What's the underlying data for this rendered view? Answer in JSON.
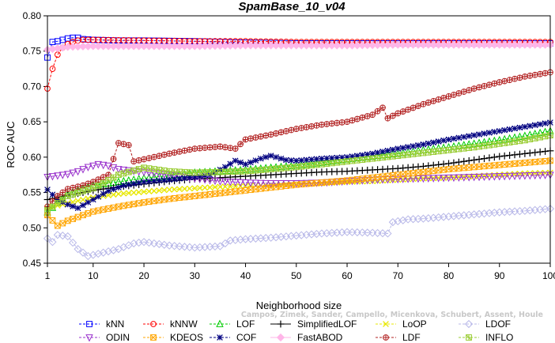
{
  "chart_data": {
    "type": "line",
    "title": "SpamBase_10_v04",
    "xlabel": "Neighborhood size",
    "ylabel": "ROC AUC",
    "xlim": [
      1,
      100
    ],
    "ylim": [
      0.45,
      0.8
    ],
    "x_ticks": [
      1,
      10,
      20,
      30,
      40,
      50,
      60,
      70,
      80,
      90,
      100
    ],
    "y_ticks": [
      "0.45",
      "0.50",
      "0.55",
      "0.60",
      "0.65",
      "0.70",
      "0.75",
      "0.80"
    ],
    "grid": false,
    "legend_position": "bottom",
    "series": [
      {
        "name": "kNN",
        "color": "#0000ff",
        "marker": "square",
        "dashed": true,
        "points": [
          [
            1,
            0.741
          ],
          [
            2,
            0.763
          ],
          [
            3,
            0.764
          ],
          [
            4,
            0.766
          ],
          [
            5,
            0.768
          ],
          [
            6,
            0.769
          ],
          [
            7,
            0.769
          ],
          [
            8,
            0.767
          ],
          [
            10,
            0.766
          ],
          [
            15,
            0.765
          ],
          [
            20,
            0.765
          ],
          [
            30,
            0.764
          ],
          [
            40,
            0.762
          ],
          [
            50,
            0.761
          ],
          [
            60,
            0.761
          ],
          [
            70,
            0.761
          ],
          [
            80,
            0.761
          ],
          [
            90,
            0.761
          ],
          [
            100,
            0.761
          ]
        ]
      },
      {
        "name": "kNNW",
        "color": "#ff0000",
        "marker": "circle",
        "dashed": true,
        "points": [
          [
            1,
            0.697
          ],
          [
            2,
            0.725
          ],
          [
            3,
            0.745
          ],
          [
            4,
            0.755
          ],
          [
            5,
            0.76
          ],
          [
            6,
            0.763
          ],
          [
            7,
            0.765
          ],
          [
            8,
            0.766
          ],
          [
            10,
            0.766
          ],
          [
            20,
            0.765
          ],
          [
            30,
            0.764
          ],
          [
            40,
            0.764
          ],
          [
            50,
            0.763
          ],
          [
            60,
            0.763
          ],
          [
            70,
            0.763
          ],
          [
            80,
            0.763
          ],
          [
            90,
            0.763
          ],
          [
            100,
            0.763
          ]
        ]
      },
      {
        "name": "LOF",
        "color": "#00cc00",
        "marker": "triangle-up",
        "dashed": true,
        "points": [
          [
            1,
            0.522
          ],
          [
            3,
            0.535
          ],
          [
            5,
            0.548
          ],
          [
            8,
            0.556
          ],
          [
            10,
            0.56
          ],
          [
            15,
            0.565
          ],
          [
            20,
            0.57
          ],
          [
            25,
            0.574
          ],
          [
            30,
            0.578
          ],
          [
            35,
            0.58
          ],
          [
            40,
            0.582
          ],
          [
            45,
            0.585
          ],
          [
            50,
            0.588
          ],
          [
            55,
            0.592
          ],
          [
            60,
            0.597
          ],
          [
            65,
            0.601
          ],
          [
            70,
            0.605
          ],
          [
            75,
            0.61
          ],
          [
            80,
            0.614
          ],
          [
            85,
            0.619
          ],
          [
            90,
            0.624
          ],
          [
            95,
            0.63
          ],
          [
            100,
            0.637
          ]
        ]
      },
      {
        "name": "SimplifiedLOF",
        "color": "#000000",
        "marker": "plus",
        "dashed": false,
        "points": [
          [
            1,
            0.54
          ],
          [
            3,
            0.543
          ],
          [
            5,
            0.546
          ],
          [
            8,
            0.55
          ],
          [
            10,
            0.553
          ],
          [
            15,
            0.558
          ],
          [
            20,
            0.562
          ],
          [
            25,
            0.566
          ],
          [
            30,
            0.569
          ],
          [
            35,
            0.571
          ],
          [
            40,
            0.573
          ],
          [
            45,
            0.575
          ],
          [
            50,
            0.577
          ],
          [
            55,
            0.579
          ],
          [
            60,
            0.58
          ],
          [
            65,
            0.582
          ],
          [
            70,
            0.584
          ],
          [
            75,
            0.587
          ],
          [
            80,
            0.591
          ],
          [
            85,
            0.596
          ],
          [
            90,
            0.601
          ],
          [
            95,
            0.605
          ],
          [
            100,
            0.609
          ]
        ]
      },
      {
        "name": "LoOP",
        "color": "#e8e800",
        "marker": "cross",
        "dashed": true,
        "points": [
          [
            1,
            0.528
          ],
          [
            5,
            0.535
          ],
          [
            10,
            0.543
          ],
          [
            15,
            0.548
          ],
          [
            20,
            0.551
          ],
          [
            25,
            0.554
          ],
          [
            30,
            0.556
          ],
          [
            35,
            0.558
          ],
          [
            40,
            0.559
          ],
          [
            45,
            0.561
          ],
          [
            50,
            0.562
          ],
          [
            55,
            0.563
          ],
          [
            60,
            0.565
          ],
          [
            65,
            0.566
          ],
          [
            70,
            0.568
          ],
          [
            75,
            0.57
          ],
          [
            80,
            0.571
          ],
          [
            85,
            0.573
          ],
          [
            90,
            0.575
          ],
          [
            95,
            0.577
          ],
          [
            100,
            0.578
          ]
        ]
      },
      {
        "name": "LDOF",
        "color": "#b8b8e8",
        "marker": "diamond",
        "dashed": true,
        "points": [
          [
            1,
            0.485
          ],
          [
            2,
            0.48
          ],
          [
            3,
            0.49
          ],
          [
            5,
            0.488
          ],
          [
            7,
            0.47
          ],
          [
            9,
            0.46
          ],
          [
            12,
            0.465
          ],
          [
            15,
            0.47
          ],
          [
            18,
            0.478
          ],
          [
            20,
            0.48
          ],
          [
            25,
            0.475
          ],
          [
            30,
            0.472
          ],
          [
            35,
            0.474
          ],
          [
            37,
            0.482
          ],
          [
            40,
            0.484
          ],
          [
            45,
            0.486
          ],
          [
            50,
            0.489
          ],
          [
            55,
            0.492
          ],
          [
            60,
            0.494
          ],
          [
            65,
            0.493
          ],
          [
            68,
            0.492
          ],
          [
            69,
            0.508
          ],
          [
            72,
            0.512
          ],
          [
            75,
            0.513
          ],
          [
            80,
            0.516
          ],
          [
            85,
            0.519
          ],
          [
            90,
            0.522
          ],
          [
            95,
            0.524
          ],
          [
            100,
            0.527
          ]
        ]
      },
      {
        "name": "ODIN",
        "color": "#9932cc",
        "marker": "triangle-down",
        "dashed": true,
        "points": [
          [
            1,
            0.572
          ],
          [
            3,
            0.574
          ],
          [
            5,
            0.576
          ],
          [
            7,
            0.58
          ],
          [
            9,
            0.586
          ],
          [
            11,
            0.59
          ],
          [
            13,
            0.588
          ],
          [
            15,
            0.583
          ],
          [
            20,
            0.579
          ],
          [
            25,
            0.575
          ],
          [
            30,
            0.57
          ],
          [
            35,
            0.566
          ],
          [
            40,
            0.564
          ],
          [
            45,
            0.563
          ],
          [
            50,
            0.563
          ],
          [
            55,
            0.564
          ],
          [
            60,
            0.566
          ],
          [
            65,
            0.568
          ],
          [
            70,
            0.569
          ],
          [
            75,
            0.57
          ],
          [
            80,
            0.571
          ],
          [
            85,
            0.572
          ],
          [
            90,
            0.573
          ],
          [
            95,
            0.574
          ],
          [
            100,
            0.575
          ]
        ]
      },
      {
        "name": "KDEOS",
        "color": "#ffa500",
        "marker": "square-x",
        "dashed": true,
        "points": [
          [
            1,
            0.518
          ],
          [
            3,
            0.503
          ],
          [
            5,
            0.51
          ],
          [
            8,
            0.518
          ],
          [
            10,
            0.523
          ],
          [
            15,
            0.53
          ],
          [
            20,
            0.536
          ],
          [
            25,
            0.541
          ],
          [
            30,
            0.545
          ],
          [
            35,
            0.549
          ],
          [
            40,
            0.553
          ],
          [
            45,
            0.557
          ],
          [
            50,
            0.561
          ],
          [
            55,
            0.564
          ],
          [
            60,
            0.567
          ],
          [
            65,
            0.571
          ],
          [
            70,
            0.575
          ],
          [
            75,
            0.579
          ],
          [
            80,
            0.583
          ],
          [
            85,
            0.586
          ],
          [
            90,
            0.589
          ],
          [
            95,
            0.592
          ],
          [
            100,
            0.595
          ]
        ]
      },
      {
        "name": "COF",
        "color": "#000080",
        "marker": "asterisk",
        "dashed": true,
        "points": [
          [
            1,
            0.554
          ],
          [
            3,
            0.54
          ],
          [
            5,
            0.533
          ],
          [
            7,
            0.528
          ],
          [
            10,
            0.54
          ],
          [
            13,
            0.552
          ],
          [
            16,
            0.56
          ],
          [
            20,
            0.565
          ],
          [
            25,
            0.568
          ],
          [
            30,
            0.572
          ],
          [
            33,
            0.575
          ],
          [
            36,
            0.586
          ],
          [
            38,
            0.595
          ],
          [
            40,
            0.59
          ],
          [
            43,
            0.598
          ],
          [
            45,
            0.602
          ],
          [
            48,
            0.596
          ],
          [
            50,
            0.595
          ],
          [
            55,
            0.598
          ],
          [
            60,
            0.6
          ],
          [
            65,
            0.605
          ],
          [
            70,
            0.612
          ],
          [
            75,
            0.618
          ],
          [
            80,
            0.625
          ],
          [
            85,
            0.631
          ],
          [
            90,
            0.637
          ],
          [
            95,
            0.643
          ],
          [
            100,
            0.649
          ]
        ]
      },
      {
        "name": "FastABOD",
        "color": "#ffb6e8",
        "marker": "diamond-filled",
        "dashed": false,
        "points": [
          [
            1,
            0.752
          ],
          [
            3,
            0.754
          ],
          [
            5,
            0.756
          ],
          [
            10,
            0.757
          ],
          [
            20,
            0.757
          ],
          [
            30,
            0.757
          ],
          [
            40,
            0.758
          ],
          [
            50,
            0.758
          ],
          [
            60,
            0.758
          ],
          [
            70,
            0.759
          ],
          [
            80,
            0.759
          ],
          [
            90,
            0.759
          ],
          [
            100,
            0.759
          ]
        ]
      },
      {
        "name": "LDF",
        "color": "#b22222",
        "marker": "circle-plus",
        "dashed": true,
        "points": [
          [
            1,
            0.53
          ],
          [
            3,
            0.545
          ],
          [
            5,
            0.555
          ],
          [
            8,
            0.56
          ],
          [
            10,
            0.565
          ],
          [
            13,
            0.575
          ],
          [
            15,
            0.62
          ],
          [
            17,
            0.617
          ],
          [
            18,
            0.594
          ],
          [
            20,
            0.597
          ],
          [
            25,
            0.605
          ],
          [
            30,
            0.612
          ],
          [
            35,
            0.615
          ],
          [
            38,
            0.612
          ],
          [
            40,
            0.625
          ],
          [
            45,
            0.632
          ],
          [
            50,
            0.64
          ],
          [
            55,
            0.646
          ],
          [
            60,
            0.65
          ],
          [
            65,
            0.66
          ],
          [
            67,
            0.67
          ],
          [
            68,
            0.655
          ],
          [
            70,
            0.662
          ],
          [
            75,
            0.675
          ],
          [
            80,
            0.686
          ],
          [
            85,
            0.697
          ],
          [
            90,
            0.706
          ],
          [
            95,
            0.714
          ],
          [
            100,
            0.72
          ]
        ]
      },
      {
        "name": "INFLO",
        "color": "#99cc33",
        "marker": "square-asterisk",
        "dashed": true,
        "points": [
          [
            1,
            0.525
          ],
          [
            3,
            0.535
          ],
          [
            5,
            0.545
          ],
          [
            8,
            0.552
          ],
          [
            10,
            0.556
          ],
          [
            15,
            0.575
          ],
          [
            20,
            0.585
          ],
          [
            25,
            0.58
          ],
          [
            30,
            0.578
          ],
          [
            35,
            0.579
          ],
          [
            40,
            0.58
          ],
          [
            45,
            0.583
          ],
          [
            50,
            0.586
          ],
          [
            55,
            0.59
          ],
          [
            60,
            0.594
          ],
          [
            65,
            0.598
          ],
          [
            70,
            0.602
          ],
          [
            75,
            0.606
          ],
          [
            80,
            0.61
          ],
          [
            85,
            0.614
          ],
          [
            90,
            0.619
          ],
          [
            95,
            0.624
          ],
          [
            100,
            0.631
          ]
        ]
      }
    ],
    "watermark": "Campos, Zimek, Sander, Campello, Micenkova, Schubert, Assent, Houle"
  }
}
